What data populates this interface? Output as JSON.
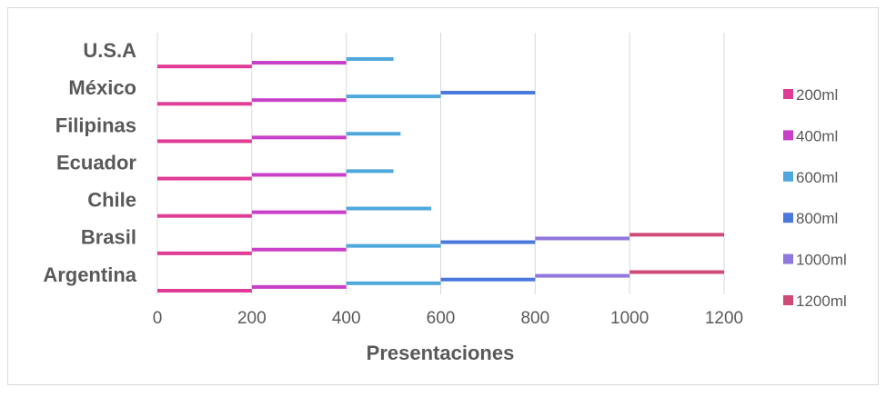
{
  "chart_data": {
    "type": "bar",
    "orientation": "horizontal",
    "stacked": true,
    "title": "",
    "xlabel": "Presentaciones",
    "ylabel": "",
    "xlim": [
      0,
      1200
    ],
    "xticks": [
      "0",
      "200",
      "400",
      "600",
      "800",
      "1000",
      "1200"
    ],
    "grid": true,
    "legend": "right",
    "categories": [
      "U.S.A",
      "México",
      "Filipinas",
      "Ecuador",
      "Chile",
      "Brasil",
      "Argentina"
    ],
    "series": [
      {
        "name": "200ml",
        "color": "#e03c96",
        "values": [
          200,
          200,
          200,
          200,
          200,
          200,
          200
        ]
      },
      {
        "name": "400ml",
        "color": "#c840c8",
        "values": [
          200,
          200,
          200,
          200,
          200,
          200,
          200
        ]
      },
      {
        "name": "600ml",
        "color": "#4fa8dc",
        "values": [
          100,
          200,
          115,
          100,
          180,
          200,
          200
        ]
      },
      {
        "name": "800ml",
        "color": "#4a78dc",
        "values": [
          0,
          200,
          0,
          0,
          0,
          200,
          200
        ]
      },
      {
        "name": "1000ml",
        "color": "#9078dc",
        "values": [
          0,
          0,
          0,
          0,
          0,
          200,
          200
        ]
      },
      {
        "name": "1200ml",
        "color": "#d04a78",
        "values": [
          0,
          0,
          0,
          0,
          0,
          200,
          200
        ]
      }
    ]
  }
}
